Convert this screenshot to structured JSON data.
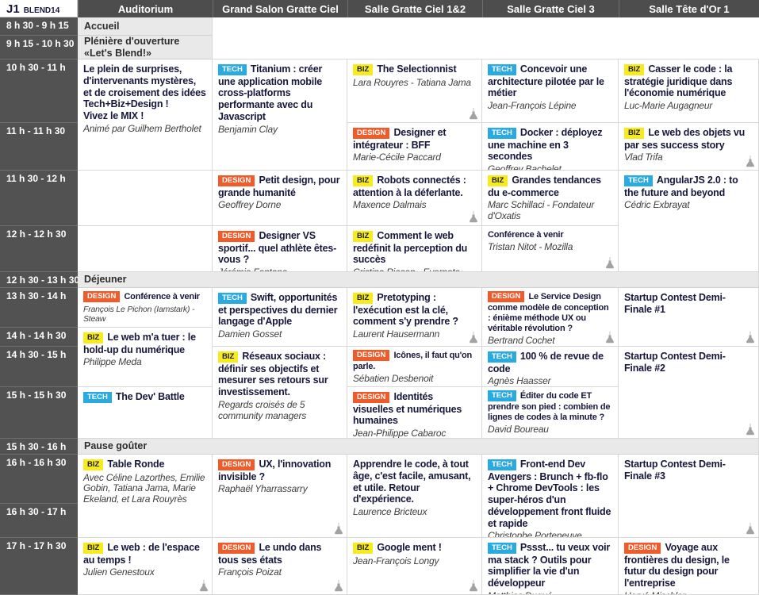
{
  "app": {
    "day_label": "J1",
    "event_label": "BLEND14"
  },
  "columns": [
    "Auditorium",
    "Grand Salon Gratte Ciel",
    "Salle Gratte Ciel 1&2",
    "Salle Gratte Ciel 3",
    "Salle Tête d'Or 1"
  ],
  "time_slots": [
    "8 h 30 - 9 h 15",
    "9 h 15 - 10 h 30",
    "10 h 30 - 11 h",
    "11 h - 11 h 30",
    "11 h 30 - 12 h",
    "12 h - 12 h 30",
    "12 h 30 - 13 h 30",
    "13 h 30 - 14 h",
    "14 h - 14 h 30",
    "14 h 30 - 15 h",
    "15 h - 15 h 30",
    "15 h 30 - 16 h",
    "16 h - 16 h 30",
    "16 h 30 - 17 h",
    "17 h - 17 h 30"
  ],
  "tag_labels": {
    "tech": "TECH",
    "biz": "BIZ",
    "design": "DESIGN"
  },
  "colors": {
    "tech_bg": "#29abe2",
    "tech_text": "#ffffff",
    "biz_bg": "#f7eb1d",
    "biz_text": "#1d1d1d",
    "design_bg": "#f15b2a",
    "design_text": "#ffffff",
    "header_bg": "#4d4d4d",
    "band_bg": "#e9e9e9",
    "title_text": "#17173c",
    "speaker_text": "#3f3f3f"
  },
  "bands": [
    {
      "label": "Accueil",
      "row": 1,
      "full": false
    },
    {
      "label": "Plénière d'ouverture «Let's Blend!»",
      "row": 2,
      "full": false
    },
    {
      "label": "Déjeuner",
      "row": 7,
      "full": true
    },
    {
      "label": "Pause goûter",
      "row": 12,
      "full": true
    }
  ],
  "sessions": [
    {
      "col": 1,
      "row": 3,
      "span": 2,
      "tag": null,
      "title": "Le plein de surprises, d'intervenants mystères, et de croisement des idées Tech+Biz+Design !\nVivez le MIX !",
      "speaker": "Animé par Guilhem Bertholet",
      "flask": false
    },
    {
      "col": 2,
      "row": 3,
      "span": 2,
      "tag": "tech",
      "title": "Titanium : créer une application mobile cross-platforms performante avec du Javascript",
      "speaker": "Benjamin Clay",
      "flask": false
    },
    {
      "col": 3,
      "row": 3,
      "span": 1,
      "tag": "biz",
      "title": "The Selectionnist",
      "speaker": "Lara Rouyres - Tatiana Jama",
      "flask": true
    },
    {
      "col": 4,
      "row": 3,
      "span": 1,
      "tag": "tech",
      "title": "Concevoir une architecture pilotée par le métier",
      "speaker": "Jean-François Lépine",
      "flask": false
    },
    {
      "col": 5,
      "row": 3,
      "span": 1,
      "tag": "biz",
      "title": "Casser le code : la stratégie juridique dans l'économie numérique",
      "speaker": "Luc-Marie Augagneur",
      "flask": false
    },
    {
      "col": 3,
      "row": 4,
      "span": 1,
      "tag": "design",
      "title": "Designer et intégrateur : BFF",
      "speaker": "Marie-Cécile Paccard",
      "flask": false
    },
    {
      "col": 4,
      "row": 4,
      "span": 1,
      "tag": "tech",
      "title": "Docker : déployez une machine en 3 secondes",
      "speaker": "Geoffrey Bachelet",
      "flask": false
    },
    {
      "col": 5,
      "row": 4,
      "span": 1,
      "tag": "biz",
      "title": "Le web des objets vu par ses success story",
      "speaker": "Vlad Trifa",
      "flask": true
    },
    {
      "col": 2,
      "row": 5,
      "span": 1,
      "tag": "design",
      "title": "Petit design, pour grande humanité",
      "speaker": "Geoffrey Dorne",
      "flask": false
    },
    {
      "col": 3,
      "row": 5,
      "span": 1,
      "tag": "biz",
      "title": "Robots connectés : attention à la déferlante.",
      "speaker": "Maxence Dalmais",
      "flask": true
    },
    {
      "col": 4,
      "row": 5,
      "span": 1,
      "tag": "biz",
      "title": "Grandes tendances du e-commerce",
      "speaker": "Marc Schillaci - Fondateur d'Oxatis",
      "flask": false
    },
    {
      "col": 5,
      "row": 5,
      "span": 2,
      "tag": "tech",
      "title": "AngularJS 2.0 : to the future and beyond",
      "speaker": "Cédric Exbrayat",
      "flask": false
    },
    {
      "col": 2,
      "row": 6,
      "span": 1,
      "tag": "design",
      "title": "Designer VS sportif... quel athlète êtes-vous ?",
      "speaker": "Jérémie Fontana",
      "flask": false
    },
    {
      "col": 3,
      "row": 6,
      "span": 1,
      "tag": "biz",
      "title": "Comment le web redéfinit la perception du succès",
      "speaker": "Cristina Riesen - Evernote",
      "flask": false
    },
    {
      "col": 4,
      "row": 6,
      "span": 1,
      "tag": null,
      "title": "Conférence à venir",
      "speaker": "Tristan Nitot - Mozilla",
      "flask": true,
      "small_title": true
    },
    {
      "col": 1,
      "row": 8,
      "span": 1,
      "tag": "design",
      "title": "Conférence à venir",
      "speaker": "François Le Pichon (Iamstark) - Steaw",
      "flask": false,
      "small_title": true,
      "small_speaker": true
    },
    {
      "col": 2,
      "row": 8,
      "span": 2,
      "tag": "tech",
      "title": "Swift, opportunités et perspectives du dernier langage d'Apple",
      "speaker": "Damien Gosset",
      "flask": false
    },
    {
      "col": 3,
      "row": 8,
      "span": 2,
      "tag": "biz",
      "title": "Pretotyping : l'exécution est la clé, comment s'y prendre ?",
      "speaker": "Laurent Hausermann",
      "flask": true
    },
    {
      "col": 4,
      "row": 8,
      "span": 2,
      "tag": "design",
      "title": "Le Service Design comme modèle de conception : énième méthode UX ou véritable révolution ?",
      "speaker": "Bertrand Cochet",
      "flask": true,
      "small_title": true
    },
    {
      "col": 5,
      "row": 8,
      "span": 2,
      "tag": null,
      "title": "Startup Contest Demi-Finale #1",
      "flask": true
    },
    {
      "col": 1,
      "row": 9,
      "span": 2,
      "tag": "biz",
      "title": "Le web m'a tuer : le hold-up du numérique",
      "speaker": "Philippe Meda",
      "flask": false
    },
    {
      "col": 2,
      "row": 10,
      "span": 2,
      "tag": "biz",
      "title": "Réseaux sociaux : définir ses objectifs et mesurer ses retours sur investissement.",
      "speaker": "Regards croisés de 5 community managers",
      "flask": false
    },
    {
      "col": 3,
      "row": 10,
      "span": 1,
      "tag": "design",
      "title": "Icônes, il faut qu'on parle.",
      "speaker": "Sébatien Desbenoit",
      "flask": false,
      "small_title": true
    },
    {
      "col": 4,
      "row": 10,
      "span": 1,
      "tag": "tech",
      "title": "100 % de revue de code",
      "speaker": "Agnès Haasser",
      "flask": false
    },
    {
      "col": 5,
      "row": 10,
      "span": 2,
      "tag": null,
      "title": "Startup Contest Demi-Finale #2",
      "flask": true
    },
    {
      "col": 1,
      "row": 11,
      "span": 1,
      "tag": "tech",
      "title": "The Dev' Battle",
      "flask": false
    },
    {
      "col": 3,
      "row": 11,
      "span": 1,
      "tag": "design",
      "title": "Identités visuelles et numériques humaines",
      "speaker": "Jean-Philippe Cabaroc",
      "flask": false
    },
    {
      "col": 4,
      "row": 11,
      "span": 1,
      "tag": "tech",
      "title": "Éditer du code ET prendre son pied : combien de lignes de codes à la minute ?",
      "speaker": "David Boureau",
      "flask": false,
      "small_title": true
    },
    {
      "col": 1,
      "row": 13,
      "span": 2,
      "tag": "biz",
      "title": "Table Ronde",
      "speaker": "Avec Céline Lazorthes, Emilie Gobin, Tatiana Jama, Marie Ekeland, et Lara Rouyrès",
      "flask": false
    },
    {
      "col": 2,
      "row": 13,
      "span": 2,
      "tag": "design",
      "title": "UX, l'innovation invisible ?",
      "speaker": "Raphaël Yharrassarry",
      "flask": true
    },
    {
      "col": 3,
      "row": 13,
      "span": 2,
      "tag": null,
      "title": "Apprendre le code, à tout âge, c'est facile, amusant, et utile. Retour d'expérience.",
      "speaker": "Laurence Bricteux",
      "flask": false
    },
    {
      "col": 4,
      "row": 13,
      "span": 2,
      "tag": "tech",
      "title": "Front-end Dev Avengers : Brunch + fb-flo + Chrome DevTools : les super-héros d'un développement front fluide et rapide",
      "speaker": "Christophe Porteneuve",
      "flask": false
    },
    {
      "col": 5,
      "row": 13,
      "span": 2,
      "tag": null,
      "title": "Startup Contest Demi-Finale #3",
      "flask": true
    },
    {
      "col": 1,
      "row": 15,
      "span": 1,
      "tag": "biz",
      "title": "Le web : de l'espace au temps !",
      "speaker": "Julien Genestoux",
      "flask": true
    },
    {
      "col": 2,
      "row": 15,
      "span": 1,
      "tag": "design",
      "title": "Le undo dans tous ses états",
      "speaker": "François Poizat",
      "flask": true
    },
    {
      "col": 3,
      "row": 15,
      "span": 1,
      "tag": "biz",
      "title": "Google ment !",
      "speaker": "Jean-François Longy",
      "flask": true
    },
    {
      "col": 4,
      "row": 15,
      "span": 1,
      "tag": "tech",
      "title": "Pssst... tu veux voir ma stack ? Outils pour simplifier la vie d'un développeur",
      "speaker": "Matthias Dugué",
      "flask": false
    },
    {
      "col": 5,
      "row": 15,
      "span": 1,
      "tag": "design",
      "title": "Voyage aux frontières du design, le futur du design pour l'entreprise",
      "speaker": "Hervé Mischler",
      "flask": false
    }
  ]
}
